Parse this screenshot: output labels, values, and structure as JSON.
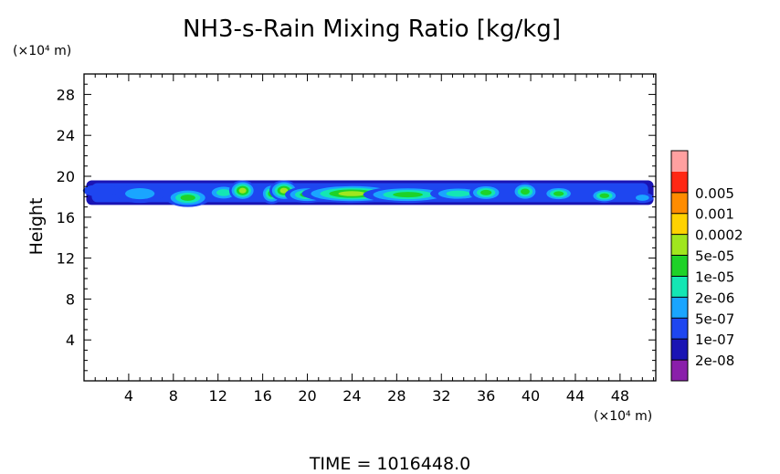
{
  "chart_data": {
    "type": "heatmap",
    "title": "NH3-s-Rain Mixing Ratio [kg/kg]",
    "xlabel": "",
    "ylabel": "Height",
    "x_unit": "(×10⁴ m)",
    "y_unit": "(×10⁴ m)",
    "xlim": [
      0,
      51.2
    ],
    "ylim": [
      0,
      30
    ],
    "x_ticks": [
      4,
      8,
      12,
      16,
      20,
      24,
      28,
      32,
      36,
      40,
      44,
      48
    ],
    "y_ticks": [
      4,
      8,
      12,
      16,
      20,
      24,
      28
    ],
    "colorbar": {
      "levels": [
        "2e-08",
        "1e-07",
        "5e-07",
        "2e-06",
        "1e-05",
        "5e-05",
        "0.0002",
        "0.001",
        "0.005"
      ],
      "colors": [
        "#8a1faa",
        "#1a14b4",
        "#1e46f0",
        "#1aa5ff",
        "#14e6b4",
        "#1ed228",
        "#a0e61e",
        "#ffd200",
        "#ff8c00",
        "#ff2814",
        "#ffa0a0"
      ]
    },
    "layer": {
      "bottom_km_e4": 17.2,
      "top_km_e4": 19.6,
      "x_start": 0.2,
      "x_end": 51.0,
      "cells": [
        {
          "x": 1.5,
          "y": 18.6,
          "rx": 1.6,
          "ry": 0.6,
          "level": 2
        },
        {
          "x": 5.0,
          "y": 18.3,
          "rx": 2.2,
          "ry": 0.9,
          "level": 3
        },
        {
          "x": 9.3,
          "y": 17.9,
          "rx": 2.0,
          "ry": 0.9,
          "level": 5
        },
        {
          "x": 12.5,
          "y": 18.4,
          "rx": 1.5,
          "ry": 0.8,
          "level": 4
        },
        {
          "x": 14.2,
          "y": 18.6,
          "rx": 1.2,
          "ry": 1.0,
          "level": 6
        },
        {
          "x": 16.8,
          "y": 18.3,
          "rx": 1.0,
          "ry": 1.0,
          "level": 5
        },
        {
          "x": 17.9,
          "y": 18.6,
          "rx": 1.3,
          "ry": 1.0,
          "level": 6
        },
        {
          "x": 20.0,
          "y": 18.2,
          "rx": 2.0,
          "ry": 0.8,
          "level": 5
        },
        {
          "x": 24.0,
          "y": 18.3,
          "rx": 4.5,
          "ry": 0.9,
          "level": 6
        },
        {
          "x": 29.0,
          "y": 18.2,
          "rx": 4.0,
          "ry": 0.8,
          "level": 5
        },
        {
          "x": 33.5,
          "y": 18.3,
          "rx": 2.5,
          "ry": 0.7,
          "level": 4
        },
        {
          "x": 36.0,
          "y": 18.4,
          "rx": 1.5,
          "ry": 0.8,
          "level": 5
        },
        {
          "x": 39.5,
          "y": 18.5,
          "rx": 1.2,
          "ry": 0.9,
          "level": 5
        },
        {
          "x": 42.5,
          "y": 18.3,
          "rx": 1.4,
          "ry": 0.7,
          "level": 5
        },
        {
          "x": 46.6,
          "y": 18.1,
          "rx": 1.3,
          "ry": 0.7,
          "level": 5
        },
        {
          "x": 50.0,
          "y": 17.9,
          "rx": 1.0,
          "ry": 0.5,
          "level": 3
        }
      ]
    },
    "grid": false,
    "legend_position": "right"
  },
  "footer": {
    "time_text": "TIME =  1016448.0"
  }
}
